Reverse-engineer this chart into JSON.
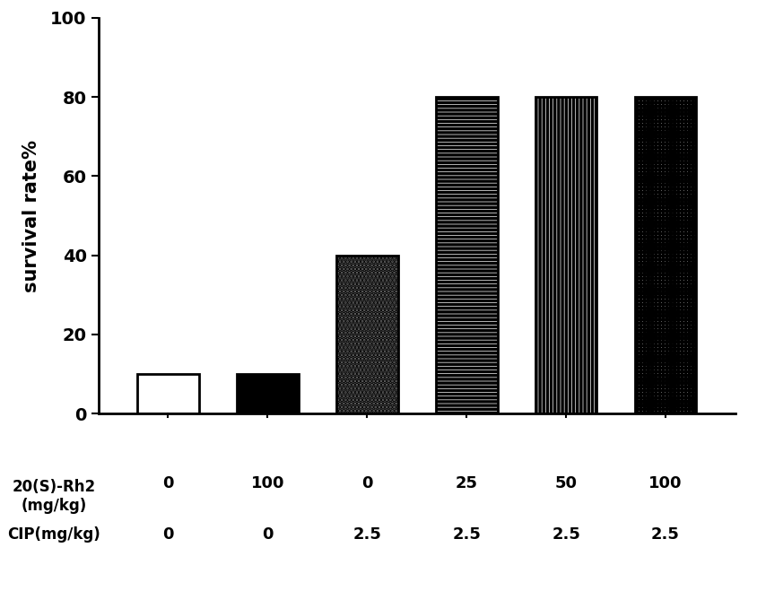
{
  "values": [
    10,
    10,
    40,
    80,
    80,
    80
  ],
  "bar_positions": [
    1,
    2,
    3,
    4,
    5,
    6
  ],
  "ylabel": "survival rate%",
  "ylim": [
    0,
    100
  ],
  "yticks": [
    0,
    20,
    40,
    60,
    80,
    100
  ],
  "rh2_label": "20(S)-Rh2\n(mg/kg)",
  "cip_label": "CIP(mg/kg)",
  "rh2_values": [
    "0",
    "100",
    "0",
    "25",
    "50",
    "100"
  ],
  "cip_values": [
    "0",
    "0",
    "2.5",
    "2.5",
    "2.5",
    "2.5"
  ],
  "bar_width": 0.62,
  "linewidth": 2.0,
  "xlim": [
    0.3,
    6.7
  ]
}
